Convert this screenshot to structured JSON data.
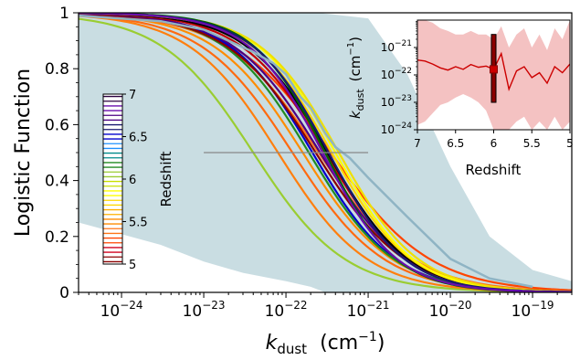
{
  "chart_data": [
    {
      "type": "line",
      "xlabel": "k",
      "xlabel_sub": "dust",
      "xlabel_unit": "(cm",
      "xlabel_unit_exp": "−1",
      "xlabel_unit_close": ")",
      "ylabel": "Logistic Function",
      "xscale": "log",
      "xlim": [
        3e-25,
        3e-19
      ],
      "ylim": [
        0,
        1
      ],
      "x_ticks": [
        {
          "value": 1e-24,
          "base": "10",
          "exp": "−24"
        },
        {
          "value": 1e-23,
          "base": "10",
          "exp": "−23"
        },
        {
          "value": 1e-22,
          "base": "10",
          "exp": "−22"
        },
        {
          "value": 1e-21,
          "base": "10",
          "exp": "−21"
        },
        {
          "value": 1e-20,
          "base": "10",
          "exp": "−20"
        },
        {
          "value": 1e-19,
          "base": "10",
          "exp": "−19"
        }
      ],
      "y_ticks": [
        "0",
        "0.2",
        "0.4",
        "0.6",
        "0.8",
        "1"
      ],
      "y_tick_values": [
        0,
        0.2,
        0.4,
        0.6,
        0.8,
        1
      ],
      "band": {
        "color": "#c9dde2",
        "x": [
          3e-25,
          3e-24,
          1e-23,
          3e-23,
          1e-22,
          2e-22,
          3e-22,
          2.5e-22,
          1e-21,
          3e-21,
          1e-20,
          3e-20,
          1e-19,
          3e-19
        ],
        "lower": [
          0.25,
          0.17,
          0.11,
          0.07,
          0.04,
          0.02,
          0.0,
          0.0,
          0.0,
          0.0,
          0.0,
          0.0,
          0.0,
          0.0
        ],
        "upper": [
          1.0,
          1.0,
          1.0,
          1.0,
          1.0,
          1.0,
          1.0,
          1.0,
          0.98,
          0.78,
          0.45,
          0.2,
          0.08,
          0.04
        ]
      },
      "hline": {
        "y": 0.5,
        "x_range": [
          1e-23,
          1e-21
        ],
        "color": "#888888"
      },
      "curves_note": "logistic curves y = 1/(1+(x/x0)^s), coloured by redshift",
      "curves": [
        {
          "x0": 4e-23,
          "s": 0.78,
          "color": "#9acd32"
        },
        {
          "x0": 8e-23,
          "s": 0.8,
          "color": "#ff7f0e"
        },
        {
          "x0": 1.2e-22,
          "s": 0.78,
          "color": "#ff6a10"
        },
        {
          "x0": 1.6e-22,
          "s": 0.8,
          "color": "#ff8c00"
        },
        {
          "x0": 2.5e-22,
          "s": 0.76,
          "color": "#ff7518"
        },
        {
          "x0": 3.5e-22,
          "s": 0.72,
          "color": "#ff4500"
        },
        {
          "x0": 2.1e-22,
          "s": 0.86,
          "color": "#0000cd"
        },
        {
          "x0": 1.9e-22,
          "s": 0.84,
          "color": "#228b22"
        },
        {
          "x0": 2.3e-22,
          "s": 0.8,
          "color": "#8b0000"
        },
        {
          "x0": 2.6e-22,
          "s": 0.82,
          "color": "#4b0082"
        },
        {
          "x0": 3e-22,
          "s": 0.85,
          "color": "#c00000"
        },
        {
          "x0": 3.2e-22,
          "s": 0.88,
          "color": "#000000"
        },
        {
          "x0": 3.6e-22,
          "s": 0.9,
          "color": "#ffd700"
        },
        {
          "x0": 4e-22,
          "s": 0.92,
          "color": "#ffff00"
        },
        {
          "x0": 4.4e-22,
          "s": 0.9,
          "color": "#f0e000"
        },
        {
          "x0": 3e-22,
          "s": 1.0,
          "color": "#006400"
        },
        {
          "x0": 3.3e-22,
          "s": 0.94,
          "color": "#191970"
        },
        {
          "x0": 2.8e-22,
          "s": 0.96,
          "color": "#6a0dad"
        }
      ],
      "jagged": {
        "color": "#8fb4c4",
        "x": [
          3e-25,
          3e-24,
          1e-23,
          2e-23,
          4e-23,
          7e-23,
          1e-22,
          1.5e-22,
          2e-22,
          3e-22,
          4e-22,
          6e-22,
          1e-21,
          3e-21,
          1e-20,
          3e-20,
          1e-19
        ],
        "y": [
          0.99,
          0.97,
          0.94,
          0.9,
          0.86,
          0.82,
          0.78,
          0.7,
          0.66,
          0.57,
          0.52,
          0.48,
          0.41,
          0.27,
          0.12,
          0.05,
          0.02
        ]
      }
    },
    {
      "type": "line",
      "role": "inset",
      "xlabel": "Redshift",
      "ylabel": "k",
      "ylabel_sub": "dust",
      "ylabel_unit": "(cm",
      "ylabel_unit_exp": "−1",
      "ylabel_unit_close": ")",
      "yscale": "log",
      "xlim": [
        7,
        5
      ],
      "ylim": [
        1e-24,
        1e-20
      ],
      "x_ticks": [
        "7",
        "6.5",
        "6",
        "5.5",
        "5"
      ],
      "x_tick_values": [
        7,
        6.5,
        6,
        5.5,
        5
      ],
      "y_ticks": [
        {
          "value": 1e-21,
          "base": "10",
          "exp": "−21"
        },
        {
          "value": 1e-22,
          "base": "10",
          "exp": "−22"
        },
        {
          "value": 1e-23,
          "base": "10",
          "exp": "−23"
        },
        {
          "value": 1e-24,
          "base": "10",
          "exp": "−24"
        }
      ],
      "band_color": "#f4c2c2",
      "line_color": "#cc0000",
      "z": [
        7.0,
        6.9,
        6.8,
        6.7,
        6.6,
        6.5,
        6.4,
        6.3,
        6.2,
        6.1,
        6.0,
        5.9,
        5.8,
        5.7,
        5.6,
        5.5,
        5.4,
        5.3,
        5.2,
        5.1,
        5.0
      ],
      "k": [
        3.5e-22,
        3.2e-22,
        2.5e-22,
        1.8e-22,
        1.5e-22,
        2e-22,
        1.6e-22,
        2.4e-22,
        1.9e-22,
        2.1e-22,
        1.6e-22,
        6e-22,
        3e-23,
        1.4e-22,
        2e-22,
        8e-23,
        1.2e-22,
        5e-23,
        2e-22,
        1.2e-22,
        2.5e-22
      ],
      "k_low": [
        1.5e-24,
        2e-24,
        4e-24,
        8e-24,
        1e-23,
        1.5e-23,
        2e-23,
        1.5e-23,
        1e-23,
        5e-24,
        1e-24,
        1e-24,
        1e-24,
        2e-24,
        3e-24,
        1e-24,
        2e-24,
        1e-24,
        3e-24,
        1e-24,
        2e-24
      ],
      "k_high": [
        1e-20,
        1e-20,
        8e-21,
        5e-21,
        4e-21,
        3e-21,
        3e-21,
        4e-21,
        3e-21,
        3e-21,
        2e-21,
        6e-21,
        1e-21,
        3e-21,
        5e-21,
        1e-21,
        3e-21,
        8e-22,
        5e-21,
        2e-21,
        1e-20
      ],
      "marker_bar": {
        "z_start": 6.03,
        "z_end": 5.97,
        "k_low": 1e-23,
        "k_high": 3e-21,
        "color": "#8b0000"
      },
      "marker_point": {
        "z": 6.0,
        "k": 1.6e-22,
        "color": "#cc0000"
      }
    }
  ],
  "colorbar": {
    "title": "Redshift",
    "ticks": [
      "7",
      "6.5",
      "6",
      "5.5",
      "5"
    ],
    "tick_values": [
      7,
      6.5,
      6,
      5.5,
      5
    ],
    "range": [
      5,
      7
    ],
    "colors": [
      "#8b0000",
      "#d2001e",
      "#ff4500",
      "#ff7518",
      "#ff8c00",
      "#ffb000",
      "#ffd700",
      "#ffff00",
      "#c8e000",
      "#9acd32",
      "#228b22",
      "#008b8b",
      "#1e90ff",
      "#0000cd",
      "#191970",
      "#4b0082",
      "#6a0dad",
      "#2b0040"
    ]
  }
}
